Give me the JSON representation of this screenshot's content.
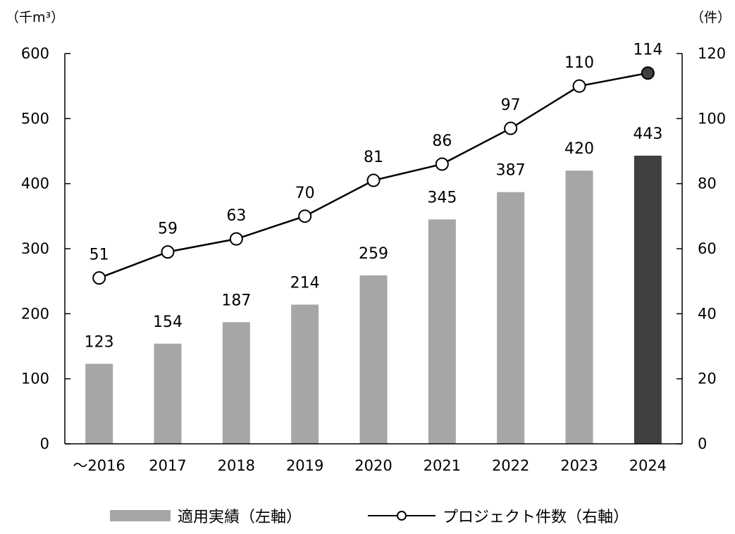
{
  "units": {
    "left": "（千m³）",
    "right": "（件）"
  },
  "legend": {
    "bar_label": "適用実績（左軸）",
    "line_label": "プロジェクト件数（右軸）"
  },
  "colors": {
    "bar": "#a6a6a6",
    "bar_highlight": "#404040",
    "line": "#000000",
    "marker_fill": "#ffffff",
    "marker_highlight": "#404040"
  },
  "chart_data": {
    "type": "bar",
    "categories": [
      "～2016",
      "2017",
      "2018",
      "2019",
      "2020",
      "2021",
      "2022",
      "2023",
      "2024"
    ],
    "series": [
      {
        "name": "適用実績（左軸）",
        "type": "bar",
        "axis": "left",
        "values": [
          123,
          154,
          187,
          214,
          259,
          345,
          387,
          420,
          443
        ]
      },
      {
        "name": "プロジェクト件数（右軸）",
        "type": "line",
        "axis": "right",
        "values": [
          51,
          59,
          63,
          70,
          81,
          86,
          97,
          110,
          114
        ]
      }
    ],
    "y_left": {
      "ylim": [
        0,
        600
      ],
      "ticks": [
        0,
        100,
        200,
        300,
        400,
        500,
        600
      ]
    },
    "y_right": {
      "ylim": [
        0,
        120
      ],
      "ticks": [
        0,
        20,
        40,
        60,
        80,
        100,
        120
      ]
    },
    "highlight_last": true,
    "grid": false,
    "legend_position": "bottom"
  }
}
